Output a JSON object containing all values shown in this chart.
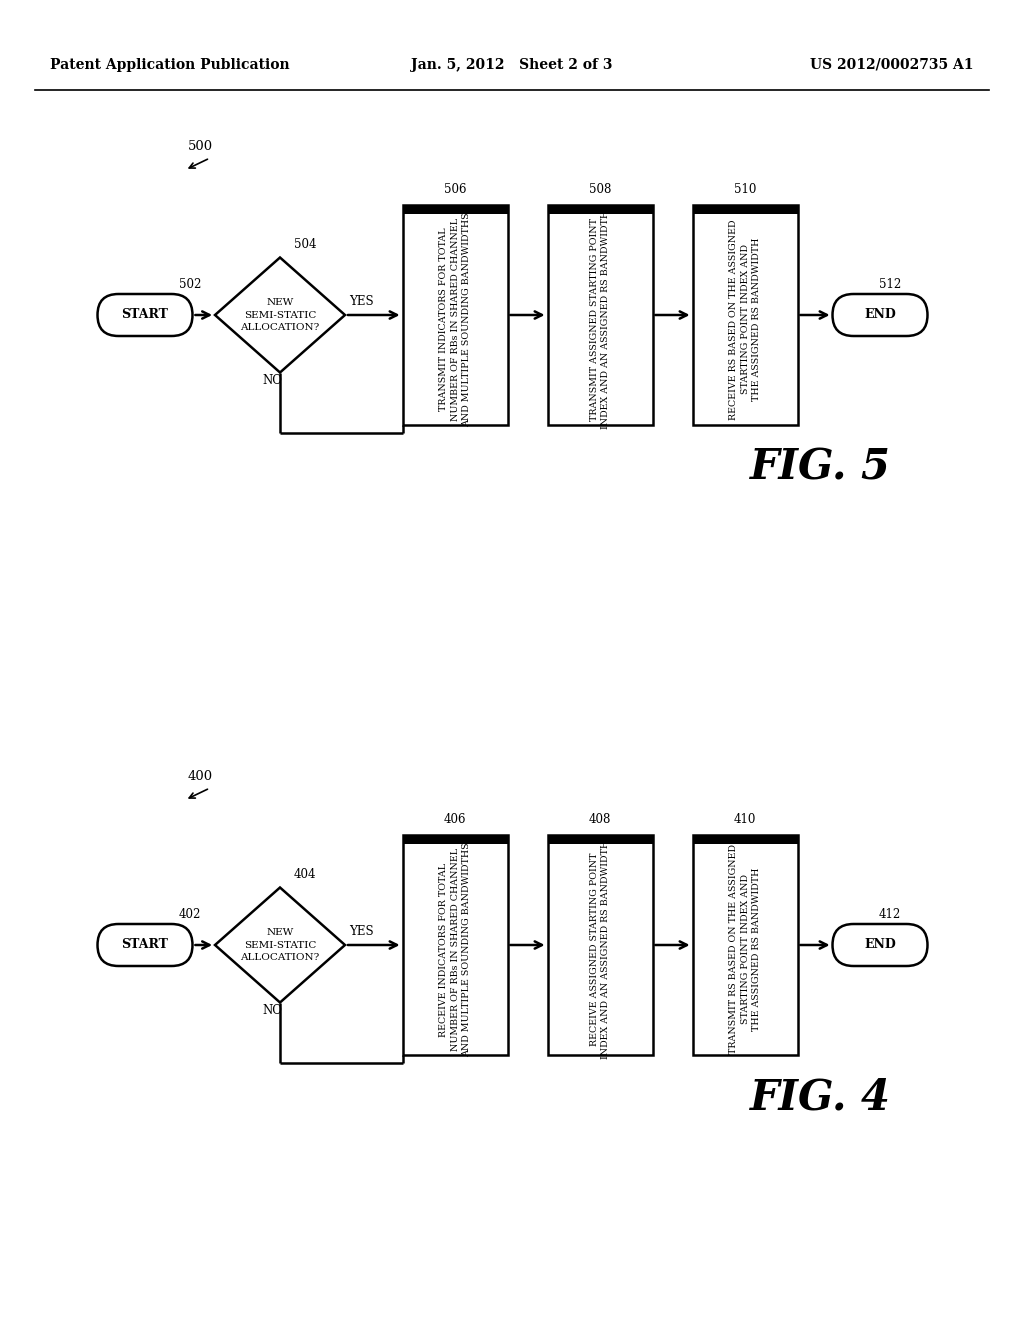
{
  "header_left": "Patent Application Publication",
  "header_mid": "Jan. 5, 2012   Sheet 2 of 3",
  "header_right": "US 2012/0002735 A1",
  "fig5": {
    "diagram_num": "500",
    "fig_label": "FIG. 5",
    "start_num": "502",
    "start_text": "START",
    "diamond_num": "504",
    "diamond_text": "NEW\nSEMI-STATIC\nALLOCATION?",
    "box1_num": "506",
    "box1_text": "TRANSMIT INDICATORS FOR TOTAL\nNUMBER OF RBs IN SHARED CHANNEL\nAND MULTIPLE SOUNDING BANDWIDTHS",
    "box2_num": "508",
    "box2_text": "TRANSMIT ASSIGNED STARTING POINT\nINDEX AND AN ASSIGNED RS BANDWIDTH",
    "box3_num": "510",
    "box3_text": "RECEIVE RS BASED ON THE ASSIGNED\nSTARTING POINT INDEX AND\nTHE ASSIGNED RS BANDWIDTH",
    "end_num": "512",
    "end_text": "END",
    "yes_label": "YES",
    "no_label": "NO"
  },
  "fig4": {
    "diagram_num": "400",
    "fig_label": "FIG. 4",
    "start_num": "402",
    "start_text": "START",
    "diamond_num": "404",
    "diamond_text": "NEW\nSEMI-STATIC\nALLOCATION?",
    "box1_num": "406",
    "box1_text": "RECEIVE INDICATORS FOR TOTAL\nNUMBER OF RBs IN SHARED CHANNEL\nAND MULTIPLE SOUNDING BANDWIDTHS",
    "box2_num": "408",
    "box2_text": "RECEIVE ASSIGNED STARTING POINT\nINDEX AND AN ASSIGNED RS BANDWIDTH",
    "box3_num": "410",
    "box3_text": "TRANSMIT RS BASED ON THE ASSIGNED\nSTARTING POINT INDEX AND\nTHE ASSIGNED RS BANDWIDTH",
    "end_num": "412",
    "end_text": "END",
    "yes_label": "YES",
    "no_label": "NO"
  }
}
